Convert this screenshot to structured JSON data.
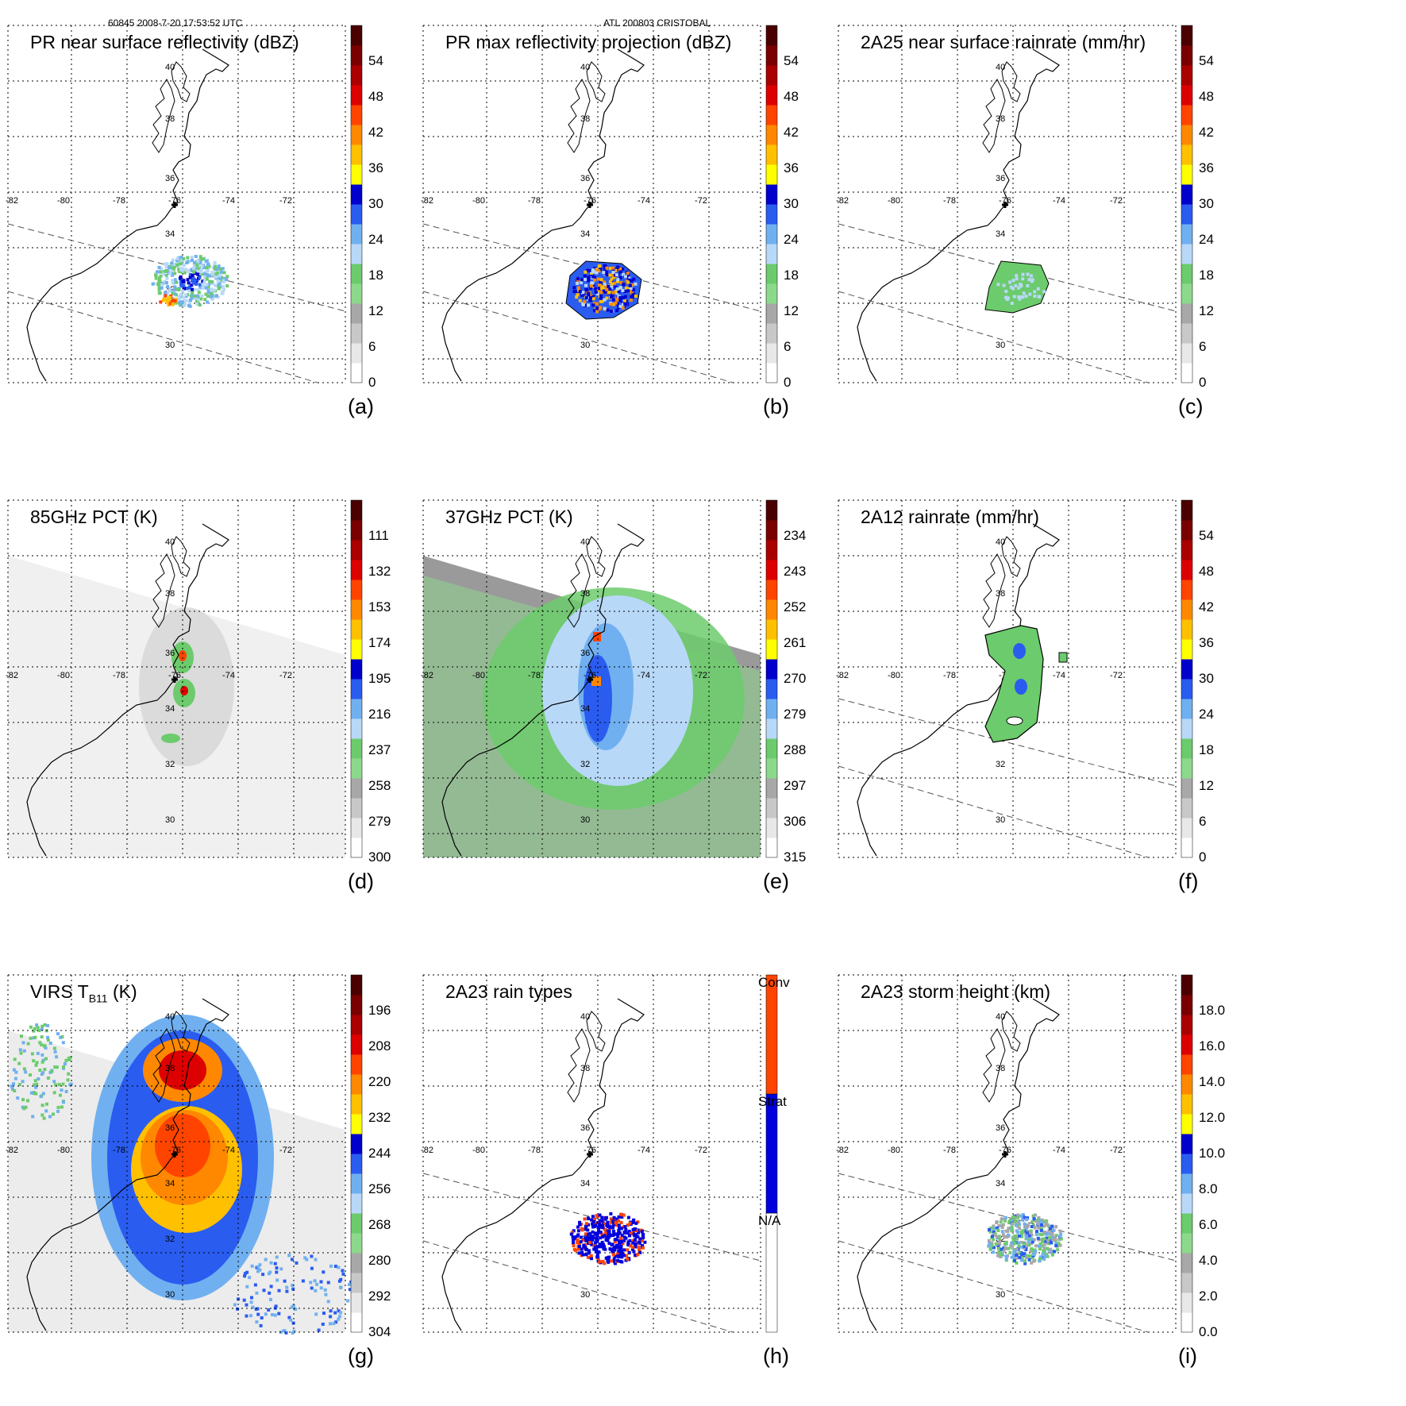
{
  "header": {
    "orbit_time": "60845 2008-7-20 17:53:52 UTC",
    "storm": "ATL 200803 CRISTOBAL"
  },
  "map_labels": {
    "lon": [
      "-82",
      "-80",
      "-78",
      "-76",
      "-74",
      "-72"
    ],
    "lat": [
      "40",
      "38",
      "36",
      "34",
      "32",
      "30"
    ]
  },
  "colors": {
    "coast": "#000000",
    "grid": "#000000",
    "swath": "#555555",
    "dbz_scale": [
      "#ffffff",
      "#e8e8e8",
      "#c8c8c8",
      "#a8a8a8",
      "#8cd98c",
      "#6ccb6c",
      "#b8d8f8",
      "#70b0f0",
      "#2a5cf0",
      "#0000cc",
      "#ffff00",
      "#ffc000",
      "#ff8800",
      "#ff4400",
      "#dd0000",
      "#aa0000",
      "#7a0000",
      "#4a0000"
    ],
    "rtype_scale": [
      "#ffffff",
      "#0000dd",
      "#ff4400"
    ]
  },
  "chart_data": [
    {
      "id": "a",
      "type": "heatmap",
      "title": "PR near surface reflectivity (dBZ)",
      "label": "(a)",
      "colorbar": {
        "ticks": [
          "0",
          "6",
          "12",
          "18",
          "24",
          "30",
          "36",
          "42",
          "48",
          "54"
        ],
        "range": [
          0,
          60
        ]
      },
      "field": "pr_swath_near_surface"
    },
    {
      "id": "b",
      "type": "heatmap",
      "title": "PR max reflectivity projection (dBZ)",
      "label": "(b)",
      "colorbar": {
        "ticks": [
          "0",
          "6",
          "12",
          "18",
          "24",
          "30",
          "36",
          "42",
          "48",
          "54"
        ],
        "range": [
          0,
          60
        ]
      },
      "field": "pr_swath_max"
    },
    {
      "id": "c",
      "type": "heatmap",
      "title": "2A25 near surface rainrate (mm/hr)",
      "label": "(c)",
      "colorbar": {
        "ticks": [
          "0",
          "6",
          "12",
          "18",
          "24",
          "30",
          "36",
          "42",
          "48",
          "54"
        ],
        "range": [
          0,
          60
        ]
      },
      "field": "pr_swath_rain"
    },
    {
      "id": "d",
      "type": "heatmap",
      "title": "85GHz PCT (K)",
      "label": "(d)",
      "colorbar": {
        "ticks": [
          "300",
          "279",
          "258",
          "237",
          "216",
          "195",
          "174",
          "153",
          "132",
          "111"
        ],
        "range": [
          300,
          90
        ]
      },
      "field": "tmi_85"
    },
    {
      "id": "e",
      "type": "heatmap",
      "title": "37GHz PCT (K)",
      "label": "(e)",
      "colorbar": {
        "ticks": [
          "315",
          "306",
          "297",
          "288",
          "279",
          "270",
          "261",
          "252",
          "243",
          "234"
        ],
        "range": [
          315,
          225
        ]
      },
      "field": "tmi_37"
    },
    {
      "id": "f",
      "type": "heatmap",
      "title": "2A12 rainrate (mm/hr)",
      "label": "(f)",
      "colorbar": {
        "ticks": [
          "0",
          "6",
          "12",
          "18",
          "24",
          "30",
          "36",
          "42",
          "48",
          "54"
        ],
        "range": [
          0,
          60
        ]
      },
      "field": "tmi_rain"
    },
    {
      "id": "g",
      "type": "heatmap",
      "title": "VIRS T",
      "title_sub": "B11",
      "title_suffix": " (K)",
      "label": "(g)",
      "colorbar": {
        "ticks": [
          "304",
          "292",
          "280",
          "268",
          "256",
          "244",
          "232",
          "220",
          "208",
          "196"
        ],
        "range": [
          304,
          184
        ]
      },
      "field": "virs"
    },
    {
      "id": "h",
      "type": "heatmap",
      "title": "2A23 rain types",
      "label": "(h)",
      "colorbar": {
        "categories": [
          "N/A",
          "Strat",
          "Conv"
        ]
      },
      "field": "rain_type"
    },
    {
      "id": "i",
      "type": "heatmap",
      "title": "2A23 storm height (km)",
      "label": "(i)",
      "colorbar": {
        "ticks": [
          "0.0",
          "2.0",
          "4.0",
          "6.0",
          "8.0",
          "10.0",
          "12.0",
          "14.0",
          "16.0",
          "18.0"
        ],
        "range": [
          0,
          20
        ]
      },
      "field": "storm_height"
    }
  ]
}
